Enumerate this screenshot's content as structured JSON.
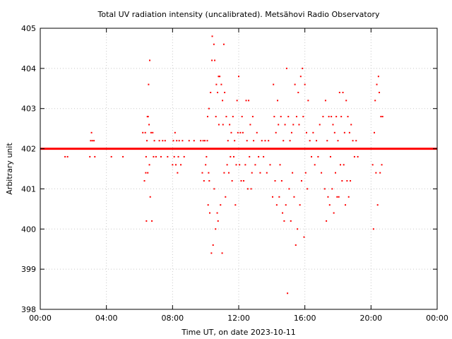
{
  "chart_data": {
    "type": "scatter",
    "title": "Total UV radiation intensity (uncalibrated). Metsähovi Radio Observatory",
    "xlabel": "Time UT, on date 2023-10-11",
    "ylabel": "Arbitrary unit",
    "xlim": [
      0,
      24
    ],
    "ylim": [
      398,
      405
    ],
    "grid": true,
    "legend": "none",
    "point_color": "#ff0000",
    "x_ticks": [
      {
        "value": 0,
        "label": "00:00"
      },
      {
        "value": 4,
        "label": "04:00"
      },
      {
        "value": 8,
        "label": "08:00"
      },
      {
        "value": 12,
        "label": "12:00"
      },
      {
        "value": 16,
        "label": "16:00"
      },
      {
        "value": 20,
        "label": "20:00"
      },
      {
        "value": 24,
        "label": "00:00"
      }
    ],
    "y_ticks": [
      {
        "value": 398,
        "label": "398"
      },
      {
        "value": 399,
        "label": "399"
      },
      {
        "value": 400,
        "label": "400"
      },
      {
        "value": 401,
        "label": "401"
      },
      {
        "value": 402,
        "label": "402"
      },
      {
        "value": 403,
        "label": "403"
      },
      {
        "value": 404,
        "label": "404"
      },
      {
        "value": 405,
        "label": "405"
      }
    ],
    "baseline": {
      "value": 402,
      "x_range": [
        0,
        24
      ]
    },
    "points": [
      [
        1.5,
        401.8
      ],
      [
        1.65,
        401.8
      ],
      [
        3.0,
        401.8
      ],
      [
        3.05,
        402.2
      ],
      [
        3.1,
        402.4
      ],
      [
        3.15,
        402.2
      ],
      [
        3.25,
        402.2
      ],
      [
        3.3,
        401.8
      ],
      [
        4.3,
        401.8
      ],
      [
        5.0,
        401.8
      ],
      [
        6.2,
        402.4
      ],
      [
        6.3,
        401.2
      ],
      [
        6.35,
        402.4
      ],
      [
        6.38,
        401.4
      ],
      [
        6.4,
        401.8
      ],
      [
        6.42,
        400.2
      ],
      [
        6.45,
        402.2
      ],
      [
        6.48,
        402.8
      ],
      [
        6.5,
        401.4
      ],
      [
        6.52,
        402.8
      ],
      [
        6.55,
        403.6
      ],
      [
        6.58,
        402.6
      ],
      [
        6.6,
        401.6
      ],
      [
        6.62,
        404.2
      ],
      [
        6.65,
        400.8
      ],
      [
        6.7,
        402.4
      ],
      [
        6.75,
        400.2
      ],
      [
        6.8,
        402.4
      ],
      [
        6.85,
        401.8
      ],
      [
        6.9,
        402.2
      ],
      [
        7.0,
        401.8
      ],
      [
        7.2,
        402.2
      ],
      [
        7.3,
        401.8
      ],
      [
        7.4,
        402.2
      ],
      [
        7.55,
        402.2
      ],
      [
        7.7,
        401.8
      ],
      [
        8.0,
        401.6
      ],
      [
        8.05,
        402.2
      ],
      [
        8.1,
        401.8
      ],
      [
        8.15,
        402.4
      ],
      [
        8.2,
        401.6
      ],
      [
        8.25,
        402.2
      ],
      [
        8.3,
        401.4
      ],
      [
        8.35,
        401.8
      ],
      [
        8.4,
        402.2
      ],
      [
        8.5,
        401.6
      ],
      [
        8.6,
        402.2
      ],
      [
        8.7,
        401.8
      ],
      [
        9.0,
        402.2
      ],
      [
        9.3,
        402.2
      ],
      [
        9.7,
        402.2
      ],
      [
        9.8,
        401.4
      ],
      [
        9.85,
        402.2
      ],
      [
        9.9,
        401.2
      ],
      [
        9.95,
        402.2
      ],
      [
        10.0,
        401.6
      ],
      [
        10.05,
        401.8
      ],
      [
        10.1,
        402.2
      ],
      [
        10.12,
        402.8
      ],
      [
        10.15,
        400.6
      ],
      [
        10.18,
        401.4
      ],
      [
        10.2,
        403.0
      ],
      [
        10.22,
        401.2
      ],
      [
        10.25,
        400.4
      ],
      [
        10.3,
        403.4
      ],
      [
        10.35,
        399.4
      ],
      [
        10.38,
        404.2
      ],
      [
        10.4,
        404.8
      ],
      [
        10.45,
        399.6
      ],
      [
        10.5,
        404.6
      ],
      [
        10.52,
        401.0
      ],
      [
        10.55,
        404.2
      ],
      [
        10.6,
        400.0
      ],
      [
        10.62,
        402.8
      ],
      [
        10.65,
        403.6
      ],
      [
        10.7,
        400.4
      ],
      [
        10.72,
        403.4
      ],
      [
        10.75,
        400.2
      ],
      [
        10.78,
        403.8
      ],
      [
        10.8,
        402.6
      ],
      [
        10.85,
        403.8
      ],
      [
        10.9,
        400.6
      ],
      [
        10.95,
        403.6
      ],
      [
        11.0,
        399.4
      ],
      [
        11.02,
        403.2
      ],
      [
        11.05,
        402.6
      ],
      [
        11.1,
        404.6
      ],
      [
        11.12,
        401.4
      ],
      [
        11.15,
        403.4
      ],
      [
        11.2,
        400.8
      ],
      [
        11.25,
        402.8
      ],
      [
        11.3,
        401.6
      ],
      [
        11.35,
        402.2
      ],
      [
        11.4,
        401.4
      ],
      [
        11.45,
        402.6
      ],
      [
        11.5,
        401.8
      ],
      [
        11.55,
        402.4
      ],
      [
        11.6,
        401.2
      ],
      [
        11.65,
        402.8
      ],
      [
        11.7,
        401.8
      ],
      [
        11.75,
        402.2
      ],
      [
        11.8,
        400.6
      ],
      [
        11.85,
        401.6
      ],
      [
        11.9,
        403.2
      ],
      [
        11.95,
        402.4
      ],
      [
        12.0,
        403.8
      ],
      [
        12.05,
        401.6
      ],
      [
        12.1,
        402.4
      ],
      [
        12.15,
        401.2
      ],
      [
        12.2,
        402.8
      ],
      [
        12.25,
        402.4
      ],
      [
        12.3,
        401.2
      ],
      [
        12.35,
        402.0
      ],
      [
        12.4,
        401.6
      ],
      [
        12.45,
        403.2
      ],
      [
        12.5,
        402.2
      ],
      [
        12.55,
        401.0
      ],
      [
        12.6,
        403.2
      ],
      [
        12.65,
        401.8
      ],
      [
        12.7,
        402.6
      ],
      [
        12.75,
        401.0
      ],
      [
        12.8,
        401.4
      ],
      [
        12.85,
        402.8
      ],
      [
        12.9,
        402.2
      ],
      [
        13.0,
        401.6
      ],
      [
        13.1,
        402.4
      ],
      [
        13.2,
        401.8
      ],
      [
        13.3,
        401.4
      ],
      [
        13.4,
        402.2
      ],
      [
        13.5,
        401.8
      ],
      [
        13.6,
        402.2
      ],
      [
        13.7,
        401.4
      ],
      [
        13.8,
        402.2
      ],
      [
        13.9,
        401.6
      ],
      [
        14.0,
        402.0
      ],
      [
        14.05,
        400.8
      ],
      [
        14.1,
        403.6
      ],
      [
        14.15,
        402.8
      ],
      [
        14.2,
        401.2
      ],
      [
        14.25,
        402.4
      ],
      [
        14.3,
        400.6
      ],
      [
        14.35,
        403.2
      ],
      [
        14.4,
        402.6
      ],
      [
        14.45,
        400.8
      ],
      [
        14.5,
        401.6
      ],
      [
        14.55,
        402.8
      ],
      [
        14.6,
        401.2
      ],
      [
        14.65,
        400.4
      ],
      [
        14.7,
        402.2
      ],
      [
        14.75,
        400.2
      ],
      [
        14.8,
        402.6
      ],
      [
        14.85,
        400.6
      ],
      [
        14.9,
        404.0
      ],
      [
        14.95,
        398.4
      ],
      [
        15.0,
        402.8
      ],
      [
        15.05,
        401.0
      ],
      [
        15.1,
        402.2
      ],
      [
        15.15,
        400.2
      ],
      [
        15.2,
        402.4
      ],
      [
        15.25,
        401.4
      ],
      [
        15.3,
        402.6
      ],
      [
        15.35,
        400.8
      ],
      [
        15.4,
        403.6
      ],
      [
        15.45,
        399.6
      ],
      [
        15.5,
        402.8
      ],
      [
        15.55,
        400.0
      ],
      [
        15.6,
        403.4
      ],
      [
        15.65,
        402.6
      ],
      [
        15.7,
        400.6
      ],
      [
        15.75,
        403.8
      ],
      [
        15.8,
        401.2
      ],
      [
        15.85,
        404.0
      ],
      [
        15.9,
        402.8
      ],
      [
        15.95,
        399.8
      ],
      [
        16.0,
        403.6
      ],
      [
        16.05,
        401.4
      ],
      [
        16.1,
        402.4
      ],
      [
        16.15,
        401.0
      ],
      [
        16.2,
        403.2
      ],
      [
        16.3,
        402.2
      ],
      [
        16.4,
        401.8
      ],
      [
        16.5,
        402.4
      ],
      [
        16.6,
        401.6
      ],
      [
        16.7,
        402.2
      ],
      [
        16.8,
        401.8
      ],
      [
        16.9,
        402.6
      ],
      [
        17.0,
        401.4
      ],
      [
        17.1,
        402.8
      ],
      [
        17.2,
        401.0
      ],
      [
        17.25,
        403.2
      ],
      [
        17.3,
        400.2
      ],
      [
        17.35,
        402.2
      ],
      [
        17.4,
        400.8
      ],
      [
        17.45,
        402.8
      ],
      [
        17.5,
        400.6
      ],
      [
        17.55,
        401.8
      ],
      [
        17.6,
        402.8
      ],
      [
        17.65,
        401.0
      ],
      [
        17.7,
        402.6
      ],
      [
        17.75,
        400.4
      ],
      [
        17.8,
        402.4
      ],
      [
        17.85,
        401.4
      ],
      [
        17.9,
        402.8
      ],
      [
        17.95,
        400.8
      ],
      [
        18.0,
        402.2
      ],
      [
        18.05,
        400.8
      ],
      [
        18.1,
        403.4
      ],
      [
        18.15,
        401.6
      ],
      [
        18.2,
        402.8
      ],
      [
        18.25,
        401.2
      ],
      [
        18.3,
        403.4
      ],
      [
        18.35,
        401.6
      ],
      [
        18.4,
        402.4
      ],
      [
        18.45,
        400.6
      ],
      [
        18.5,
        403.2
      ],
      [
        18.55,
        401.2
      ],
      [
        18.6,
        402.8
      ],
      [
        18.65,
        400.8
      ],
      [
        18.7,
        402.4
      ],
      [
        18.75,
        401.2
      ],
      [
        18.8,
        402.6
      ],
      [
        18.9,
        402.2
      ],
      [
        19.0,
        401.8
      ],
      [
        19.1,
        402.2
      ],
      [
        19.2,
        401.8
      ],
      [
        20.1,
        401.6
      ],
      [
        20.15,
        400.0
      ],
      [
        20.2,
        402.4
      ],
      [
        20.25,
        403.2
      ],
      [
        20.3,
        401.4
      ],
      [
        20.35,
        403.6
      ],
      [
        20.4,
        400.6
      ],
      [
        20.45,
        403.8
      ],
      [
        20.5,
        403.4
      ],
      [
        20.55,
        401.4
      ],
      [
        20.6,
        402.8
      ],
      [
        20.65,
        401.6
      ],
      [
        20.7,
        402.8
      ]
    ]
  }
}
